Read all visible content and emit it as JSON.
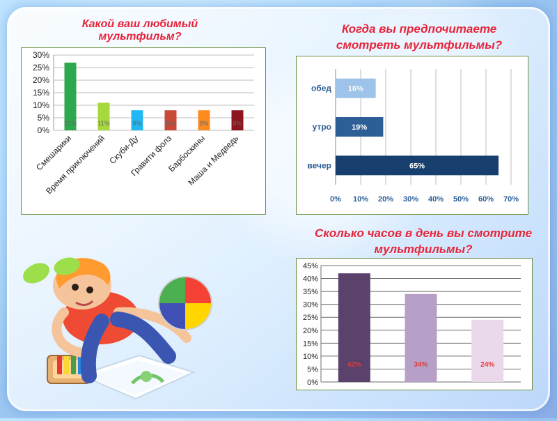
{
  "titles": {
    "chart1": "Какой ваш любимый мультфильм?",
    "chart2": "Когда вы предпочитаете смотреть мультфильмы?",
    "chart3": "Сколько часов в день вы смотрите мультфильмы?"
  },
  "chart_data": [
    {
      "type": "bar",
      "title": "Какой ваш любимый мультфильм?",
      "categories": [
        "Смешарики",
        "Время приключений",
        "Скуби-Ду",
        "Гравити фолз",
        "Барбоскины",
        "Маша и Медведь"
      ],
      "values": [
        27,
        11,
        8,
        8,
        8,
        8
      ],
      "data_labels": [
        "27%",
        "11%",
        "8%",
        "8%",
        "8%",
        "8%"
      ],
      "colors": [
        "#2ea84f",
        "#a7d83d",
        "#21b7f3",
        "#c84a36",
        "#ff8a1f",
        "#8c1520"
      ],
      "ylim": [
        0,
        30
      ],
      "yticks": [
        "0%",
        "5%",
        "10%",
        "15%",
        "20%",
        "25%",
        "30%"
      ],
      "grid": true
    },
    {
      "type": "bar",
      "orientation": "horizontal",
      "title": "Когда вы предпочитаете смотреть мультфильмы?",
      "categories": [
        "обед",
        "утро",
        "вечер"
      ],
      "values": [
        16,
        19,
        65
      ],
      "data_labels": [
        "16%",
        "19%",
        "65%"
      ],
      "colors": [
        "#9ec3ea",
        "#2d5f97",
        "#173f6d"
      ],
      "xlim": [
        0,
        70
      ],
      "xticks": [
        "0%",
        "10%",
        "20%",
        "30%",
        "40%",
        "50%",
        "60%",
        "70%"
      ],
      "grid": true
    },
    {
      "type": "bar",
      "title": "Сколько часов в день вы смотрите мультфильмы?",
      "categories": [
        "",
        "",
        ""
      ],
      "values": [
        42,
        34,
        24
      ],
      "data_labels": [
        "42%",
        "34%",
        "24%"
      ],
      "colors": [
        "#5a426c",
        "#b7a0c8",
        "#ead8eb"
      ],
      "ylim": [
        0,
        45
      ],
      "yticks": [
        "0%",
        "5%",
        "10%",
        "15%",
        "20%",
        "25%",
        "30%",
        "35%",
        "40%",
        "45%"
      ],
      "grid": true
    }
  ]
}
